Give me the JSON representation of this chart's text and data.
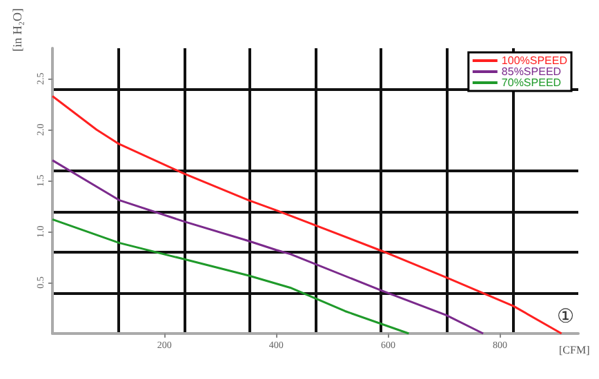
{
  "chart_data": {
    "type": "line",
    "xlabel": "[CFM]",
    "ylabel": "[in H₂O]",
    "xlim": [
      0,
      940
    ],
    "ylim": [
      0,
      2.8
    ],
    "xticks": [
      {
        "value": 117.5,
        "label": null
      },
      {
        "value": 200,
        "label": "200"
      },
      {
        "value": 235,
        "label": null
      },
      {
        "value": 352.5,
        "label": null
      },
      {
        "value": 400,
        "label": "400"
      },
      {
        "value": 470,
        "label": null
      },
      {
        "value": 587.5,
        "label": null
      },
      {
        "value": 600,
        "label": "600"
      },
      {
        "value": 705,
        "label": null
      },
      {
        "value": 800,
        "label": "800"
      },
      {
        "value": 822.5,
        "label": null
      }
    ],
    "yticks": [
      {
        "value": 0.4,
        "label": null
      },
      {
        "value": 0.5,
        "label": "0.5"
      },
      {
        "value": 0.8,
        "label": null
      },
      {
        "value": 1.0,
        "label": "1.0"
      },
      {
        "value": 1.2,
        "label": null
      },
      {
        "value": 1.5,
        "label": "1.5"
      },
      {
        "value": 1.6,
        "label": null
      },
      {
        "value": 2.0,
        "label": "2.0"
      },
      {
        "value": 2.4,
        "label": null
      },
      {
        "value": 2.5,
        "label": "2.5"
      }
    ],
    "grid": true,
    "legend": "top right",
    "marker": "none",
    "line_style": "solid",
    "annotations": [
      "①"
    ],
    "series": [
      {
        "name": "100%SPEED",
        "color": "#ff2020",
        "x": [
          0,
          79,
          119,
          235,
          350,
          400,
          589,
          704,
          824,
          910
        ],
        "values": [
          2.33,
          2.0,
          1.86,
          1.57,
          1.31,
          1.21,
          0.81,
          0.55,
          0.27,
          0
        ]
      },
      {
        "name": "85%SPEED",
        "color": "#7b2a8c",
        "x": [
          0,
          119,
          235,
          350,
          400,
          425,
          589,
          704,
          770
        ],
        "values": [
          1.7,
          1.31,
          1.1,
          0.91,
          0.82,
          0.78,
          0.42,
          0.18,
          0
        ]
      },
      {
        "name": "70%SPEED",
        "color": "#1f9a2a",
        "x": [
          0,
          119,
          235,
          350,
          425,
          523,
          637
        ],
        "values": [
          1.12,
          0.89,
          0.73,
          0.57,
          0.45,
          0.22,
          0
        ]
      }
    ]
  }
}
